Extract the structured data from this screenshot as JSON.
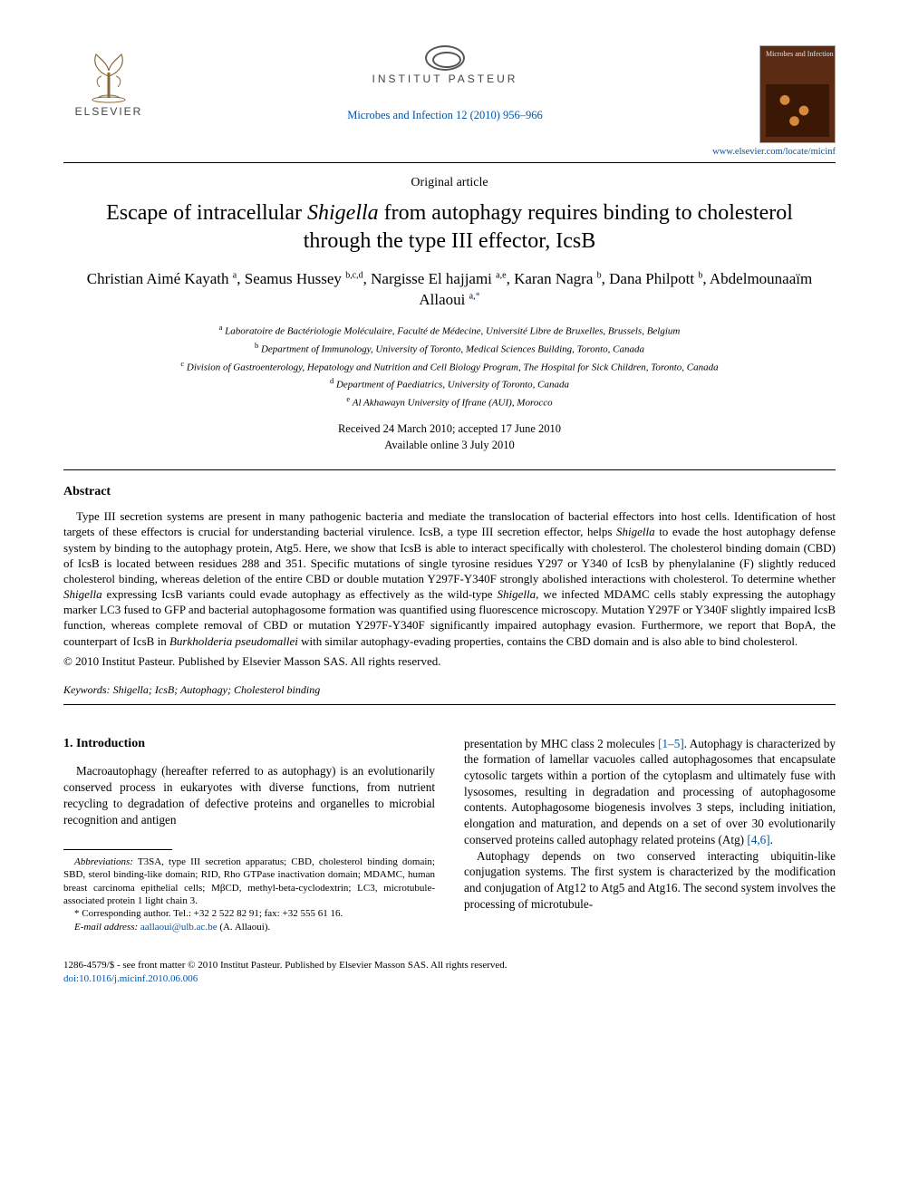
{
  "header": {
    "elsevier_word": "ELSEVIER",
    "pasteur_text": "INSTITUT PASTEUR",
    "journal_line": "Microbes and Infection 12 (2010) 956–966",
    "cover_title": "Microbes and Infection",
    "cover_link": "www.elsevier.com/locate/micinf"
  },
  "article": {
    "type": "Original article",
    "title_pre": "Escape of intracellular ",
    "title_ital": "Shigella",
    "title_post": " from autophagy requires binding to cholesterol through the type III effector, IcsB",
    "authors_html": "Christian Aimé Kayath <sup>a</sup>, Seamus Hussey <sup>b,c,d</sup>, Nargisse El hajjami <sup>a,e</sup>, Karan Nagra <sup>b</sup>, Dana Philpott <sup>b</sup>, Abdelmounaaïm Allaoui <sup>a,</sup><sup class=\"star\">*</sup>",
    "affils": [
      {
        "sup": "a",
        "text": "Laboratoire de Bactériologie Moléculaire, Faculté de Médecine, Université Libre de Bruxelles, Brussels, Belgium"
      },
      {
        "sup": "b",
        "text": "Department of Immunology, University of Toronto, Medical Sciences Building, Toronto, Canada"
      },
      {
        "sup": "c",
        "text": "Division of Gastroenterology, Hepatology and Nutrition and Cell Biology Program, The Hospital for Sick Children, Toronto, Canada"
      },
      {
        "sup": "d",
        "text": "Department of Paediatrics, University of Toronto, Canada"
      },
      {
        "sup": "e",
        "text": "Al Akhawayn University of Ifrane (AUI), Morocco"
      }
    ],
    "received": "Received 24 March 2010; accepted 17 June 2010",
    "available": "Available online 3 July 2010"
  },
  "abstract": {
    "heading": "Abstract",
    "body_html": "<span class=\"indent\">Type III secretion systems are present in many pathogenic bacteria and mediate the translocation of bacterial effectors into host cells. Identification of host targets of these effectors is crucial for understanding bacterial virulence. IcsB, a type III secretion effector, helps <span class=\"ital\">Shigella</span> to evade the host autophagy defense system by binding to the autophagy protein, Atg5. Here, we show that IcsB is able to interact specifically with cholesterol. The cholesterol binding domain (CBD) of IcsB is located between residues 288 and 351. Specific mutations of single tyrosine residues Y297 or Y340 of IcsB by phenylalanine (F) slightly reduced cholesterol binding, whereas deletion of the entire CBD or double mutation Y297F-Y340F strongly abolished interactions with cholesterol. To determine whether <span class=\"ital\">Shigella</span> expressing IcsB variants could evade autophagy as effectively as the wild-type <span class=\"ital\">Shigella</span>, we infected MDAMC cells stably expressing the autophagy marker LC3 fused to GFP and bacterial autophagosome formation was quantified using fluorescence microscopy. Mutation Y297F or Y340F slightly impaired IcsB function, whereas complete removal of CBD or mutation Y297F-Y340F significantly impaired autophagy evasion. Furthermore, we report that BopA, the counterpart of IcsB in <span class=\"ital\">Burkholderia pseudomallei</span> with similar autophagy-evading properties, contains the CBD domain and is also able to bind cholesterol.</span>",
    "copyright": "© 2010 Institut Pasteur. Published by Elsevier Masson SAS. All rights reserved.",
    "keywords_label": "Keywords:",
    "keywords_text": " Shigella; IcsB; Autophagy; Cholesterol binding"
  },
  "body": {
    "section_heading": "1. Introduction",
    "col1_para1": "Macroautophagy (hereafter referred to as autophagy) is an evolutionarily conserved process in eukaryotes with diverse functions, from nutrient recycling to degradation of defective proteins and organelles to microbial recognition and antigen",
    "col2_para1_html": "presentation by MHC class 2 molecules <span class=\"reflink\">[1–5]</span>. Autophagy is characterized by the formation of lamellar vacuoles called autophagosomes that encapsulate cytosolic targets within a portion of the cytoplasm and ultimately fuse with lysosomes, resulting in degradation and processing of autophagosome contents. Autophagosome biogenesis involves 3 steps, including initiation, elongation and maturation, and depends on a set of over 30 evolutionarily conserved proteins called autophagy related proteins (Atg) <span class=\"reflink\">[4,6]</span>.",
    "col2_para2_html": "Autophagy depends on two conserved interacting ubiquitin-like conjugation systems. The first system is characterized by the modification and conjugation of Atg12 to Atg5 and Atg16. The second system involves the processing of microtubule-"
  },
  "footnotes": {
    "abbrev_label": "Abbreviations:",
    "abbrev_text": " T3SA, type III secretion apparatus; CBD, cholesterol binding domain; SBD, sterol binding-like domain; RID, Rho GTPase inactivation domain; MDAMC, human breast carcinoma epithelial cells; MβCD, methyl-beta-cyclodextrin; LC3, microtubule-associated protein 1 light chain 3.",
    "corr": "* Corresponding author. Tel.: +32 2 522 82 91; fax: +32 555 61 16.",
    "email_label": "E-mail address:",
    "email_value": " aallaoui@ulb.ac.be",
    "email_tail": " (A. Allaoui)."
  },
  "footer": {
    "line1": "1286-4579/$ - see front matter © 2010 Institut Pasteur. Published by Elsevier Masson SAS. All rights reserved.",
    "doi": "doi:10.1016/j.micinf.2010.06.006"
  },
  "colors": {
    "link": "#0054a6",
    "text": "#000000",
    "cover_bg": "#5b2b13"
  }
}
